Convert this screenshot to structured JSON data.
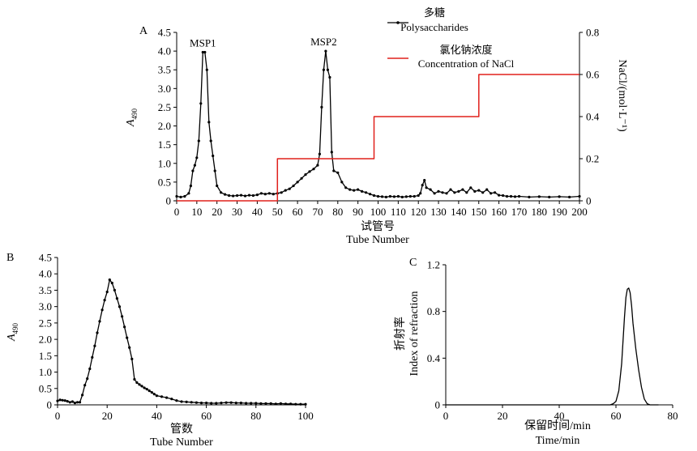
{
  "chart_data": [
    {
      "panel": "A",
      "type": "line",
      "xlabel_cn": "试管号",
      "xlabel_en": "Tube Number",
      "ylabel": "A490",
      "ylabel_main": "A",
      "ylabel_sub": "490",
      "y2label": "NaCl/(mol·L⁻¹)",
      "xlim": [
        0,
        200
      ],
      "ylim": [
        0,
        4.5
      ],
      "y2lim": [
        0,
        0.8
      ],
      "xticks": [
        "0",
        "10",
        "20",
        "30",
        "40",
        "50",
        "60",
        "70",
        "80",
        "90",
        "100",
        "110",
        "120",
        "130",
        "140",
        "150",
        "160",
        "170",
        "180",
        "190",
        "200"
      ],
      "yticks": [
        "0",
        "0.5",
        "1.0",
        "1.5",
        "2.0",
        "2.5",
        "3.0",
        "3.5",
        "4.0",
        "4.5"
      ],
      "y2ticks": [
        "0",
        "0.2",
        "0.4",
        "0.6",
        "0.8"
      ],
      "legend": [
        {
          "name_cn": "多糖",
          "name_en": "Polysaccharides",
          "color": "#000000"
        },
        {
          "name_cn": "氯化钠浓度",
          "name_en": "Concentration of NaCl",
          "color": "#e0201b"
        }
      ],
      "annotations": [
        {
          "text": "MSP1",
          "x": 13,
          "y": 3.97
        },
        {
          "text": "MSP2",
          "x": 73,
          "y": 4.0
        }
      ],
      "series": [
        {
          "name": "Polysaccharides",
          "color": "#000000",
          "x": [
            0,
            2,
            4,
            6,
            7,
            8,
            9,
            10,
            11,
            12,
            13,
            14,
            15,
            16,
            17,
            18,
            19,
            20,
            22,
            24,
            26,
            28,
            30,
            32,
            34,
            36,
            38,
            40,
            42,
            44,
            46,
            48,
            50,
            52,
            54,
            56,
            58,
            60,
            62,
            64,
            66,
            68,
            70,
            71,
            72,
            73,
            74,
            75,
            76,
            77,
            78,
            80,
            82,
            84,
            86,
            88,
            90,
            92,
            94,
            96,
            98,
            100,
            102,
            104,
            106,
            108,
            110,
            112,
            114,
            116,
            118,
            120,
            121,
            122,
            123,
            124,
            126,
            128,
            130,
            132,
            134,
            136,
            138,
            140,
            142,
            144,
            146,
            148,
            150,
            152,
            154,
            156,
            158,
            160,
            162,
            164,
            166,
            168,
            170,
            175,
            180,
            185,
            190,
            195,
            200
          ],
          "y": [
            0.12,
            0.1,
            0.12,
            0.2,
            0.4,
            0.8,
            0.95,
            1.15,
            1.6,
            2.6,
            3.97,
            3.97,
            3.5,
            2.1,
            1.6,
            1.2,
            0.8,
            0.4,
            0.22,
            0.17,
            0.14,
            0.13,
            0.14,
            0.15,
            0.13,
            0.15,
            0.14,
            0.16,
            0.2,
            0.18,
            0.2,
            0.18,
            0.2,
            0.22,
            0.28,
            0.32,
            0.4,
            0.5,
            0.6,
            0.7,
            0.78,
            0.85,
            0.95,
            1.25,
            2.5,
            3.5,
            4.0,
            3.5,
            3.3,
            1.3,
            0.8,
            0.75,
            0.5,
            0.35,
            0.3,
            0.28,
            0.3,
            0.25,
            0.22,
            0.18,
            0.14,
            0.12,
            0.11,
            0.1,
            0.12,
            0.11,
            0.12,
            0.1,
            0.11,
            0.12,
            0.12,
            0.14,
            0.2,
            0.42,
            0.55,
            0.35,
            0.3,
            0.2,
            0.25,
            0.22,
            0.2,
            0.3,
            0.22,
            0.25,
            0.3,
            0.22,
            0.35,
            0.25,
            0.28,
            0.22,
            0.3,
            0.2,
            0.22,
            0.15,
            0.14,
            0.12,
            0.12,
            0.11,
            0.12,
            0.1,
            0.11,
            0.1,
            0.11,
            0.1,
            0.12
          ]
        },
        {
          "name": "Concentration of NaCl",
          "color": "#e0201b",
          "step": true,
          "x": [
            0,
            50,
            50,
            98,
            98,
            150,
            150,
            200
          ],
          "y": [
            0,
            0,
            0.2,
            0.2,
            0.4,
            0.4,
            0.6,
            0.6
          ]
        }
      ]
    },
    {
      "panel": "B",
      "type": "line",
      "xlabel_cn": "管数",
      "xlabel_en": "Tube Number",
      "ylabel": "A490",
      "ylabel_main": "A",
      "ylabel_sub": "490",
      "xlim": [
        0,
        100
      ],
      "ylim": [
        0,
        4.5
      ],
      "xticks": [
        "0",
        "20",
        "40",
        "60",
        "80",
        "100"
      ],
      "yticks": [
        "0",
        "0.5",
        "1.0",
        "1.5",
        "2.0",
        "2.5",
        "3.0",
        "3.5",
        "4.0",
        "4.5"
      ],
      "series": [
        {
          "name": "",
          "color": "#000000",
          "x": [
            0,
            1,
            2,
            3,
            4,
            5,
            6,
            7,
            8,
            9,
            10,
            11,
            12,
            13,
            14,
            15,
            16,
            17,
            18,
            19,
            20,
            21,
            22,
            23,
            24,
            25,
            26,
            27,
            28,
            29,
            30,
            31,
            32,
            33,
            34,
            35,
            36,
            37,
            38,
            39,
            40,
            42,
            44,
            46,
            48,
            50,
            52,
            54,
            56,
            58,
            60,
            62,
            64,
            66,
            68,
            70,
            72,
            74,
            76,
            78,
            80,
            82,
            84,
            86,
            88,
            90,
            92,
            94,
            96,
            98,
            100
          ],
          "y": [
            0.12,
            0.15,
            0.14,
            0.13,
            0.11,
            0.08,
            0.1,
            0.06,
            0.08,
            0.08,
            0.3,
            0.6,
            0.8,
            1.1,
            1.45,
            1.8,
            2.2,
            2.55,
            2.9,
            3.2,
            3.45,
            3.82,
            3.72,
            3.5,
            3.25,
            3.0,
            2.7,
            2.38,
            2.05,
            1.75,
            1.4,
            0.78,
            0.68,
            0.62,
            0.57,
            0.52,
            0.48,
            0.43,
            0.38,
            0.33,
            0.28,
            0.25,
            0.22,
            0.18,
            0.13,
            0.1,
            0.09,
            0.08,
            0.07,
            0.06,
            0.06,
            0.05,
            0.05,
            0.06,
            0.07,
            0.07,
            0.06,
            0.06,
            0.05,
            0.05,
            0.05,
            0.04,
            0.04,
            0.04,
            0.03,
            0.04,
            0.03,
            0.03,
            0.02,
            0.02,
            0.02
          ]
        }
      ]
    },
    {
      "panel": "C",
      "type": "line",
      "xlabel_cn": "保留时间/min",
      "xlabel_en": "Time/min",
      "ylabel_cn": "折射率",
      "ylabel_en": "Index of refraction",
      "xlim": [
        0,
        80
      ],
      "ylim": [
        0,
        1.2
      ],
      "xticks": [
        "0",
        "20",
        "40",
        "60",
        "80"
      ],
      "yticks": [
        "0",
        "0.4",
        "0.8",
        "1.2"
      ],
      "series": [
        {
          "name": "",
          "color": "#000000",
          "x": [
            0,
            58,
            59,
            60,
            61,
            62,
            63,
            63.5,
            64,
            64.5,
            65,
            65.5,
            66,
            67,
            68,
            69,
            70,
            71,
            72,
            75
          ],
          "y": [
            0,
            0,
            0.01,
            0.03,
            0.12,
            0.35,
            0.75,
            0.92,
            0.99,
            1.0,
            0.96,
            0.85,
            0.7,
            0.48,
            0.3,
            0.15,
            0.05,
            0.01,
            0,
            0
          ]
        }
      ]
    }
  ]
}
